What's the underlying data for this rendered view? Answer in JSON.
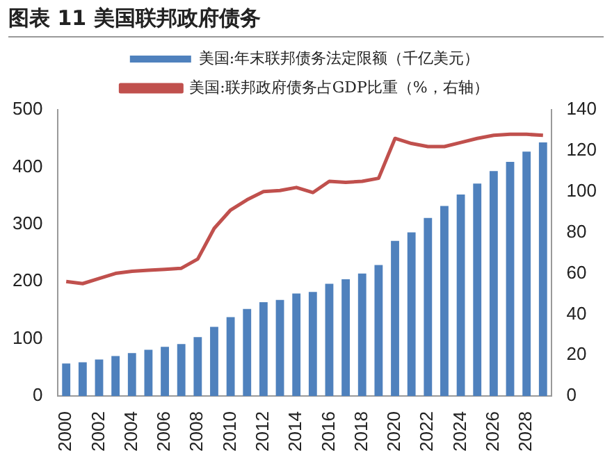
{
  "chart_data": {
    "type": "bar",
    "title": "图表 11 美国联邦政府债务",
    "categories": [
      "2000",
      null,
      "2002",
      null,
      "2004",
      null,
      "2006",
      null,
      "2008",
      null,
      "2010",
      null,
      "2012",
      null,
      "2014",
      null,
      "2016",
      null,
      "2018",
      null,
      "2020",
      null,
      "2022",
      null,
      "2024",
      null,
      "2026",
      null,
      "2028",
      null
    ],
    "series": [
      {
        "name": "美国:年末联邦债务法定限额（千亿美元）",
        "color": "#4f81bd",
        "values": [
          57,
          59,
          64,
          70,
          75,
          81,
          86,
          91,
          103,
          121,
          138,
          152,
          164,
          168,
          179,
          182,
          196,
          204,
          214,
          229,
          271,
          286,
          311,
          332,
          352,
          371,
          393,
          409,
          427,
          443
        ]
      },
      {
        "name": "美国:联邦政府债务占GDP比重（%，右轴）",
        "type": "line",
        "axis": "y2",
        "color": "#c0504d",
        "values": [
          56,
          55,
          57.5,
          60,
          61,
          61.5,
          62,
          62.5,
          67,
          82,
          91,
          96,
          100,
          100.5,
          102,
          99.5,
          105,
          104.5,
          105,
          106.5,
          126,
          123.5,
          122,
          122,
          124,
          126,
          127.5,
          128,
          128,
          127.5
        ]
      }
    ],
    "ylim": [
      0,
      500
    ],
    "yticks": [
      0,
      100,
      200,
      300,
      400,
      500
    ],
    "y2lim": [
      0,
      140
    ],
    "y2ticks": [
      0,
      20,
      40,
      60,
      80,
      100,
      120,
      140
    ],
    "legend": "top",
    "marker": "none",
    "grid": false
  }
}
